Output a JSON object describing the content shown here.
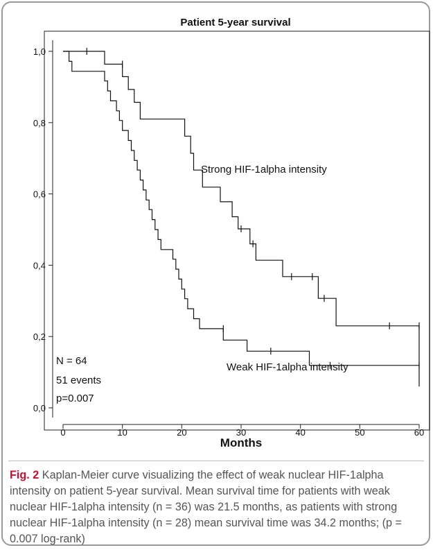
{
  "chart_data": {
    "type": "line",
    "title": "Patient 5-year survival",
    "xlabel": "Months",
    "ylabel": "",
    "xlim": [
      -2,
      62
    ],
    "ylim": [
      -0.02,
      1.05
    ],
    "x_ticks": [
      0,
      10,
      20,
      30,
      40,
      50,
      60
    ],
    "y_ticks": [
      0.0,
      0.2,
      0.4,
      0.6,
      0.8,
      1.0
    ],
    "y_tick_labels": [
      "0,0",
      "0,2",
      "0,4",
      "0,6",
      "0,8",
      "1,0"
    ],
    "grid": false,
    "series": [
      {
        "name": "Strong HIF-1alpha intensity",
        "step_points": [
          [
            0,
            1.0
          ],
          [
            7,
            1.0
          ],
          [
            7,
            0.964
          ],
          [
            10,
            0.964
          ],
          [
            10,
            0.929
          ],
          [
            11,
            0.929
          ],
          [
            11,
            0.893
          ],
          [
            12,
            0.893
          ],
          [
            12,
            0.857
          ],
          [
            13,
            0.857
          ],
          [
            13,
            0.81
          ],
          [
            20.5,
            0.81
          ],
          [
            20.5,
            0.762
          ],
          [
            21.5,
            0.762
          ],
          [
            21.5,
            0.714
          ],
          [
            22,
            0.714
          ],
          [
            22,
            0.667
          ],
          [
            23.5,
            0.667
          ],
          [
            23.5,
            0.619
          ],
          [
            26.5,
            0.619
          ],
          [
            26.5,
            0.578
          ],
          [
            28.5,
            0.578
          ],
          [
            28.5,
            0.536
          ],
          [
            29.5,
            0.536
          ],
          [
            29.5,
            0.502
          ],
          [
            31.5,
            0.502
          ],
          [
            31.5,
            0.46
          ],
          [
            32.5,
            0.46
          ],
          [
            32.5,
            0.414
          ],
          [
            37,
            0.414
          ],
          [
            37,
            0.368
          ],
          [
            43,
            0.368
          ],
          [
            43,
            0.307
          ],
          [
            46,
            0.307
          ],
          [
            46,
            0.23
          ],
          [
            60,
            0.23
          ],
          [
            60,
            0.06
          ]
        ],
        "censor_x": [
          4,
          10,
          30,
          32,
          38.5,
          42,
          44,
          55,
          60
        ]
      },
      {
        "name": "Weak HIF-1alpha intensity",
        "step_points": [
          [
            0,
            1.0
          ],
          [
            1,
            1.0
          ],
          [
            1,
            0.972
          ],
          [
            1.5,
            0.972
          ],
          [
            1.5,
            0.944
          ],
          [
            7,
            0.944
          ],
          [
            7,
            0.917
          ],
          [
            7.5,
            0.917
          ],
          [
            7.5,
            0.889
          ],
          [
            8,
            0.889
          ],
          [
            8,
            0.861
          ],
          [
            9,
            0.861
          ],
          [
            9,
            0.833
          ],
          [
            9.5,
            0.833
          ],
          [
            9.5,
            0.806
          ],
          [
            10,
            0.806
          ],
          [
            10,
            0.778
          ],
          [
            11,
            0.778
          ],
          [
            11,
            0.75
          ],
          [
            11.5,
            0.75
          ],
          [
            11.5,
            0.722
          ],
          [
            12,
            0.722
          ],
          [
            12,
            0.694
          ],
          [
            12.5,
            0.694
          ],
          [
            12.5,
            0.667
          ],
          [
            13,
            0.667
          ],
          [
            13,
            0.639
          ],
          [
            13.5,
            0.639
          ],
          [
            13.5,
            0.611
          ],
          [
            14,
            0.611
          ],
          [
            14,
            0.583
          ],
          [
            14.5,
            0.583
          ],
          [
            14.5,
            0.556
          ],
          [
            15,
            0.556
          ],
          [
            15,
            0.528
          ],
          [
            15.5,
            0.528
          ],
          [
            15.5,
            0.5
          ],
          [
            16,
            0.5
          ],
          [
            16,
            0.472
          ],
          [
            16.5,
            0.472
          ],
          [
            16.5,
            0.444
          ],
          [
            18.5,
            0.444
          ],
          [
            18.5,
            0.417
          ],
          [
            19,
            0.417
          ],
          [
            19,
            0.389
          ],
          [
            19.5,
            0.389
          ],
          [
            19.5,
            0.361
          ],
          [
            20,
            0.361
          ],
          [
            20,
            0.333
          ],
          [
            20.5,
            0.333
          ],
          [
            20.5,
            0.306
          ],
          [
            21,
            0.306
          ],
          [
            21,
            0.278
          ],
          [
            22,
            0.278
          ],
          [
            22,
            0.25
          ],
          [
            23,
            0.25
          ],
          [
            23,
            0.222
          ],
          [
            27,
            0.222
          ],
          [
            27,
            0.19
          ],
          [
            31,
            0.19
          ],
          [
            31,
            0.159
          ],
          [
            41.5,
            0.159
          ],
          [
            41.5,
            0.119
          ],
          [
            60,
            0.119
          ]
        ],
        "censor_x": [
          27,
          35,
          45,
          60
        ]
      }
    ],
    "annotations": {
      "n": "N = 64",
      "events": "51 events",
      "p": "p=0.007"
    }
  },
  "caption": {
    "label": "Fig. 2",
    "text": " Kaplan-Meier curve visualizing the effect of weak nuclear HIF-1alpha intensity on patient 5-year survival. Mean survival time for patients with weak nuclear HIF-1alpha intensity (n = 36) was 21.5 months, as patients with strong nuclear HIF-1alpha intensity (n = 28) mean survival time was 34.2 months; (p = 0.007 log-rank)"
  }
}
